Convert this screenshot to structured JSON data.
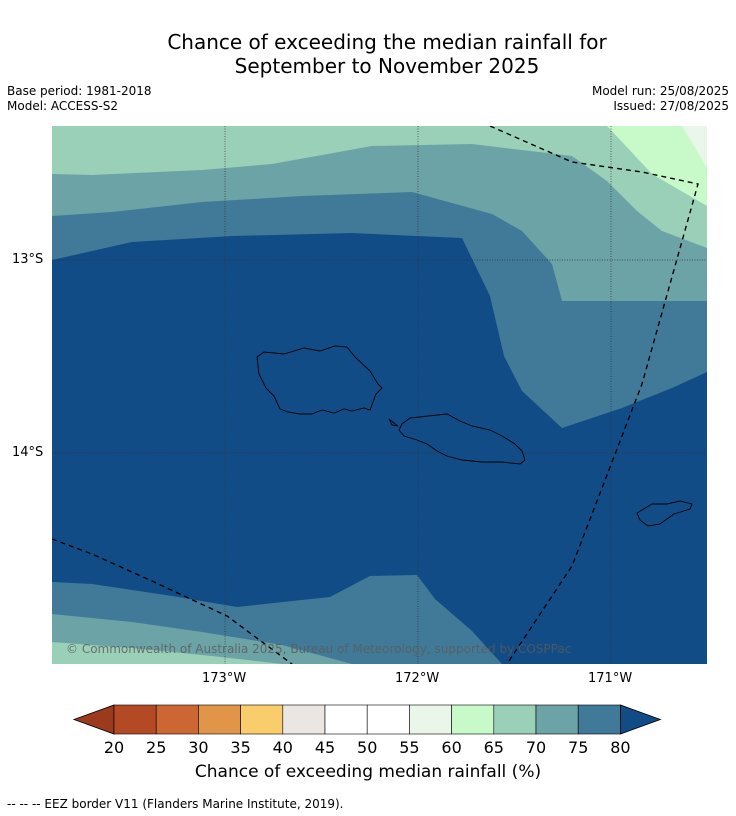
{
  "title_line1": "Chance of exceeding the median rainfall for",
  "title_line2": "September to November 2025",
  "base_period": "Base period: 1981-2018",
  "model": "Model: ACCESS-S2",
  "model_run": "Model run: 25/08/2025",
  "issued": "Issued: 27/08/2025",
  "copyright": "© Commonwealth of Australia 2025, Bureau of Meteorology, supported by COSPPac",
  "lat_labels": [
    "13°S",
    "14°S"
  ],
  "lon_labels": [
    "173°W",
    "172°W",
    "171°W"
  ],
  "legend": {
    "title": "Chance of exceeding median rainfall (%)",
    "ticks": [
      "20",
      "25",
      "30",
      "35",
      "40",
      "45",
      "50",
      "55",
      "60",
      "65",
      "70",
      "75",
      "80"
    ],
    "colors": [
      "#b34a25",
      "#cc6633",
      "#e09548",
      "#f9cc6c",
      "#ebe6e1",
      "#ffffff",
      "#ffffff",
      "#e9f6e9",
      "#c8f9c8",
      "#9acfb8",
      "#6ca3a6",
      "#417a98"
    ],
    "under_color": "#9c3a1e",
    "over_color": "#124c87"
  },
  "map_colors": {
    "c80": "#124c87",
    "c75": "#417a98",
    "c70": "#6ca3a6",
    "c65": "#9acfb8",
    "c60": "#c8f9c8",
    "c55": "#e9f6e9"
  },
  "footnote": "--  --  -- EEZ border V11 (Flanders Marine Institute, 2019)."
}
